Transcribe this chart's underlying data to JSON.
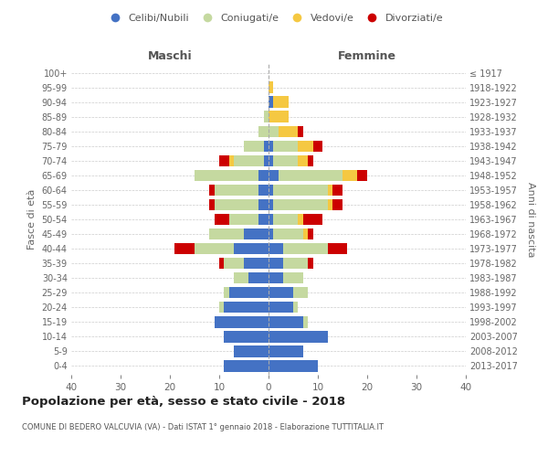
{
  "age_groups": [
    "0-4",
    "5-9",
    "10-14",
    "15-19",
    "20-24",
    "25-29",
    "30-34",
    "35-39",
    "40-44",
    "45-49",
    "50-54",
    "55-59",
    "60-64",
    "65-69",
    "70-74",
    "75-79",
    "80-84",
    "85-89",
    "90-94",
    "95-99",
    "100+"
  ],
  "birth_years": [
    "2013-2017",
    "2008-2012",
    "2003-2007",
    "1998-2002",
    "1993-1997",
    "1988-1992",
    "1983-1987",
    "1978-1982",
    "1973-1977",
    "1968-1972",
    "1963-1967",
    "1958-1962",
    "1953-1957",
    "1948-1952",
    "1943-1947",
    "1938-1942",
    "1933-1937",
    "1928-1932",
    "1923-1927",
    "1918-1922",
    "≤ 1917"
  ],
  "maschi": {
    "celibi": [
      9,
      7,
      9,
      11,
      9,
      8,
      4,
      5,
      7,
      5,
      2,
      2,
      2,
      2,
      1,
      1,
      0,
      0,
      0,
      0,
      0
    ],
    "coniugati": [
      0,
      0,
      0,
      0,
      1,
      1,
      3,
      4,
      8,
      7,
      6,
      9,
      9,
      13,
      6,
      4,
      2,
      1,
      0,
      0,
      0
    ],
    "vedovi": [
      0,
      0,
      0,
      0,
      0,
      0,
      0,
      0,
      0,
      0,
      0,
      0,
      0,
      0,
      1,
      0,
      0,
      0,
      0,
      0,
      0
    ],
    "divorziati": [
      0,
      0,
      0,
      0,
      0,
      0,
      0,
      1,
      4,
      0,
      3,
      1,
      1,
      0,
      2,
      0,
      0,
      0,
      0,
      0,
      0
    ]
  },
  "femmine": {
    "nubili": [
      10,
      7,
      12,
      7,
      5,
      5,
      3,
      3,
      3,
      1,
      1,
      1,
      1,
      2,
      1,
      1,
      0,
      0,
      1,
      0,
      0
    ],
    "coniugate": [
      0,
      0,
      0,
      1,
      1,
      3,
      4,
      5,
      9,
      6,
      5,
      11,
      11,
      13,
      5,
      5,
      2,
      0,
      0,
      0,
      0
    ],
    "vedove": [
      0,
      0,
      0,
      0,
      0,
      0,
      0,
      0,
      0,
      1,
      1,
      1,
      1,
      3,
      2,
      3,
      4,
      4,
      3,
      1,
      0
    ],
    "divorziate": [
      0,
      0,
      0,
      0,
      0,
      0,
      0,
      1,
      4,
      1,
      4,
      2,
      2,
      2,
      1,
      2,
      1,
      0,
      0,
      0,
      0
    ]
  },
  "colors": {
    "celibi": "#4472C4",
    "coniugati": "#c5d9a0",
    "vedovi": "#f5c842",
    "divorziati": "#cc0000"
  },
  "xlim": 40,
  "title": "Popolazione per età, sesso e stato civile - 2018",
  "subtitle": "COMUNE DI BEDERO VALCUVIA (VA) - Dati ISTAT 1° gennaio 2018 - Elaborazione TUTTITALIA.IT",
  "ylabel_left": "Fasce di età",
  "ylabel_right": "Anni di nascita",
  "xlabel_maschi": "Maschi",
  "xlabel_femmine": "Femmine",
  "legend_labels": [
    "Celibi/Nubili",
    "Coniugati/e",
    "Vedovi/e",
    "Divorziati/e"
  ],
  "background_color": "#ffffff",
  "grid_color": "#cccccc"
}
